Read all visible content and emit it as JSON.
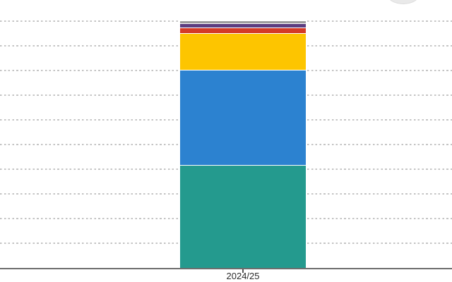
{
  "chart_data": {
    "type": "bar",
    "stacked": true,
    "title": "",
    "xlabel": "",
    "ylabel": "",
    "categories": [
      "2024/25"
    ],
    "series_order": "bottom-to-top",
    "series": [
      {
        "name": "teal-segment",
        "color": "#249a8e",
        "values": [
          4.17
        ],
        "percent_of_total": 41.5
      },
      {
        "name": "blue-segment",
        "color": "#2c82d0",
        "values": [
          3.87
        ],
        "percent_of_total": 38.5
      },
      {
        "name": "yellow-segment",
        "color": "#fdc500",
        "values": [
          1.48
        ],
        "percent_of_total": 14.7
      },
      {
        "name": "red-segment",
        "color": "#d43b27",
        "values": [
          0.23
        ],
        "percent_of_total": 2.3
      },
      {
        "name": "purple-segment",
        "color": "#5c3d80",
        "values": [
          0.16
        ],
        "percent_of_total": 1.6
      },
      {
        "name": "gray-segment",
        "color": "#9e9e9e",
        "values": [
          0.13
        ],
        "percent_of_total": 1.3
      }
    ],
    "ylim": [
      0,
      10.5
    ],
    "y_gridline_interval": 1,
    "y_tick_labels_visible": false,
    "legend": "none",
    "grid": "dashed-horizontal",
    "axis_color": "#6d6d6d",
    "gridline_color": "#c5c5c5"
  }
}
